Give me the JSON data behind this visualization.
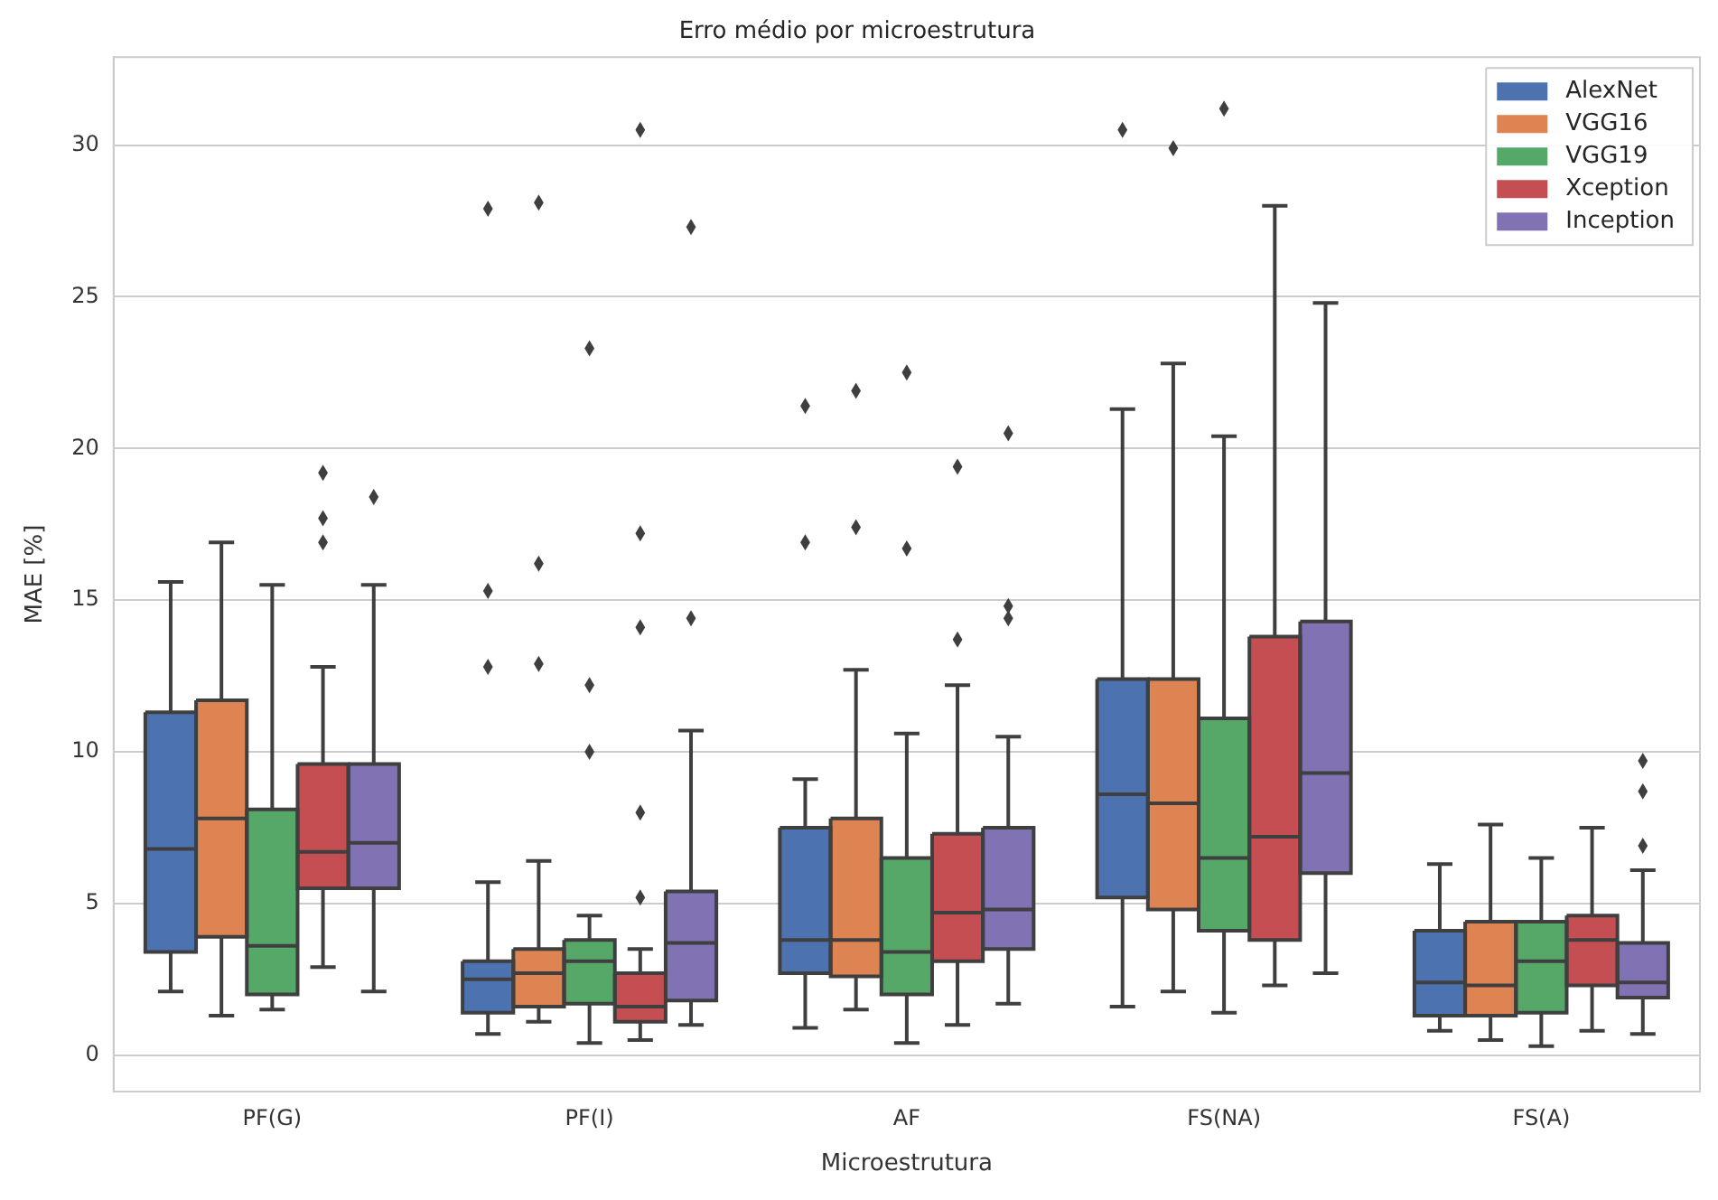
{
  "chart_data": {
    "type": "box",
    "title": "Erro médio por microestrutura",
    "xlabel": "Microestrutura",
    "ylabel": "MAE [%]",
    "categories": [
      "PF(G)",
      "PF(I)",
      "AF",
      "FS(NA)",
      "FS(A)"
    ],
    "ylim": [
      -1.2,
      32.9
    ],
    "yticks": [
      0,
      5,
      10,
      15,
      20,
      25,
      30
    ],
    "grid": "y",
    "legend": "top right",
    "marker": "diamond",
    "series": [
      {
        "name": "AlexNet",
        "color": "#4c72b0",
        "boxes": [
          {
            "low": 2.1,
            "q1": 3.4,
            "median": 6.8,
            "q3": 11.3,
            "high": 15.6
          },
          {
            "low": 0.7,
            "q1": 1.4,
            "median": 2.5,
            "q3": 3.1,
            "high": 5.7,
            "outliers": [
              27.9,
              15.3,
              12.8
            ]
          },
          {
            "low": 0.9,
            "q1": 2.7,
            "median": 3.8,
            "q3": 7.5,
            "high": 9.1,
            "outliers": [
              21.4,
              16.9
            ]
          },
          {
            "low": 1.6,
            "q1": 5.2,
            "median": 8.6,
            "q3": 12.4,
            "high": 21.3,
            "outliers": [
              30.5
            ]
          },
          {
            "low": 0.8,
            "q1": 1.3,
            "median": 2.4,
            "q3": 4.1,
            "high": 6.3
          }
        ]
      },
      {
        "name": "VGG16",
        "color": "#dd8452",
        "boxes": [
          {
            "low": 1.3,
            "q1": 3.9,
            "median": 7.8,
            "q3": 11.7,
            "high": 16.9
          },
          {
            "low": 1.1,
            "q1": 1.6,
            "median": 2.7,
            "q3": 3.5,
            "high": 6.4,
            "outliers": [
              28.1,
              16.2,
              12.9
            ]
          },
          {
            "low": 1.5,
            "q1": 2.6,
            "median": 3.8,
            "q3": 7.8,
            "high": 12.7,
            "outliers": [
              21.9,
              17.4
            ]
          },
          {
            "low": 2.1,
            "q1": 4.8,
            "median": 8.3,
            "q3": 12.4,
            "high": 22.8,
            "outliers": [
              29.9
            ]
          },
          {
            "low": 0.5,
            "q1": 1.3,
            "median": 2.3,
            "q3": 4.4,
            "high": 7.6
          }
        ]
      },
      {
        "name": "VGG19",
        "color": "#55a868",
        "boxes": [
          {
            "low": 1.5,
            "q1": 2.0,
            "median": 3.6,
            "q3": 8.1,
            "high": 15.5
          },
          {
            "low": 0.4,
            "q1": 1.7,
            "median": 3.1,
            "q3": 3.8,
            "high": 4.6,
            "outliers": [
              23.3,
              12.2,
              10.0
            ]
          },
          {
            "low": 0.4,
            "q1": 2.0,
            "median": 3.4,
            "q3": 6.5,
            "high": 10.6,
            "outliers": [
              22.5,
              16.7
            ]
          },
          {
            "low": 1.4,
            "q1": 4.1,
            "median": 6.5,
            "q3": 11.1,
            "high": 20.4,
            "outliers": [
              31.2
            ]
          },
          {
            "low": 0.3,
            "q1": 1.4,
            "median": 3.1,
            "q3": 4.4,
            "high": 6.5
          }
        ]
      },
      {
        "name": "Xception",
        "color": "#c44e52",
        "boxes": [
          {
            "low": 2.9,
            "q1": 5.5,
            "median": 6.7,
            "q3": 9.6,
            "high": 12.8,
            "outliers": [
              19.2,
              17.7,
              16.9
            ]
          },
          {
            "low": 0.5,
            "q1": 1.1,
            "median": 1.6,
            "q3": 2.7,
            "high": 3.5,
            "outliers": [
              30.5,
              17.2,
              14.1,
              8.0,
              5.2
            ]
          },
          {
            "low": 1.0,
            "q1": 3.1,
            "median": 4.7,
            "q3": 7.3,
            "high": 12.2,
            "outliers": [
              19.4,
              13.7
            ]
          },
          {
            "low": 2.3,
            "q1": 3.8,
            "median": 7.2,
            "q3": 13.8,
            "high": 28.0
          },
          {
            "low": 0.8,
            "q1": 2.3,
            "median": 3.8,
            "q3": 4.6,
            "high": 7.5
          }
        ]
      },
      {
        "name": "Inception",
        "color": "#8172b3",
        "boxes": [
          {
            "low": 2.1,
            "q1": 5.5,
            "median": 7.0,
            "q3": 9.6,
            "high": 15.5,
            "outliers": [
              18.4
            ]
          },
          {
            "low": 1.0,
            "q1": 1.8,
            "median": 3.7,
            "q3": 5.4,
            "high": 10.7,
            "outliers": [
              27.3,
              14.4
            ]
          },
          {
            "low": 1.7,
            "q1": 3.5,
            "median": 4.8,
            "q3": 7.5,
            "high": 10.5,
            "outliers": [
              20.5,
              14.8,
              14.4
            ]
          },
          {
            "low": 2.7,
            "q1": 6.0,
            "median": 9.3,
            "q3": 14.3,
            "high": 24.8
          },
          {
            "low": 0.7,
            "q1": 1.9,
            "median": 2.4,
            "q3": 3.7,
            "high": 6.1,
            "outliers": [
              9.7,
              8.7,
              6.9
            ]
          }
        ]
      }
    ]
  }
}
